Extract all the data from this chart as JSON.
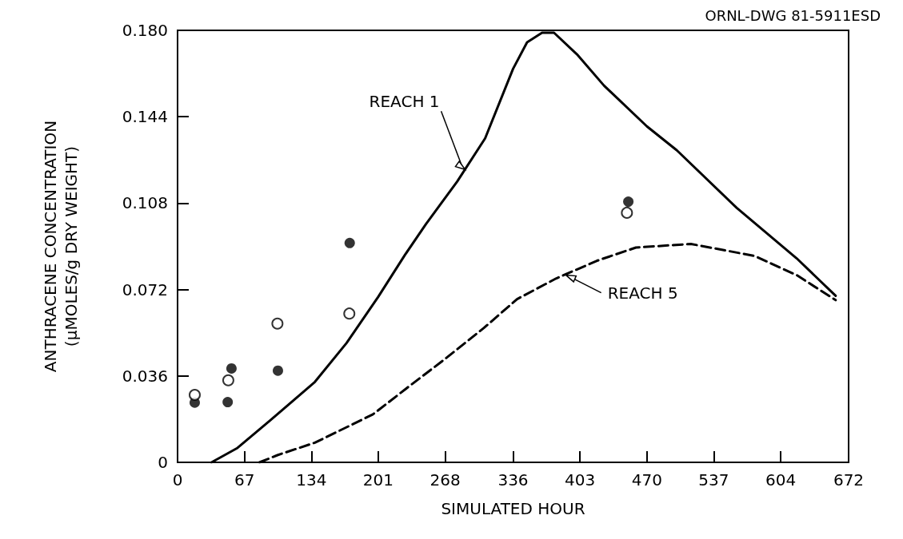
{
  "chart_data": {
    "type": "line",
    "xlabel": "SIMULATED HOUR",
    "ylabel": "ANTHRACENE CONCENTRATION\n(μMOLES/g DRY WEIGHT)",
    "xlim": [
      0,
      672
    ],
    "xticks": [
      0,
      67,
      134,
      201,
      268,
      336,
      403,
      470,
      537,
      604,
      672
    ],
    "ylim": [
      0,
      0.18
    ],
    "yticks": [
      0,
      0.036,
      0.072,
      0.108,
      0.144,
      {
        "value": 0.18,
        "label": "0.180"
      }
    ],
    "grid": false,
    "series": [
      {
        "line_style": "solid",
        "marker": "none",
        "color": "#000000",
        "x": [
          34,
          60,
          92.6,
          137.5,
          169.2,
          201,
          227.5,
          248.6,
          280,
          308,
          336,
          350,
          365,
          377,
          400,
          427,
          470,
          500,
          560,
          620,
          659
        ],
        "values": [
          0,
          0.006,
          0.0174,
          0.0335,
          0.0497,
          0.069,
          0.0863,
          0.0992,
          0.117,
          0.135,
          0.164,
          0.175,
          0.179,
          0.179,
          0.17,
          0.157,
          0.14,
          0.13,
          0.106,
          0.085,
          0.0694
        ]
      },
      {
        "line_style": "dashed",
        "marker": "none",
        "color": "#000000",
        "x": [
          82,
          100,
          137.5,
          195.7,
          236,
          264.5,
          306.8,
          340,
          379,
          420,
          459,
          514,
          578,
          620,
          659
        ],
        "values": [
          0,
          0.003,
          0.0082,
          0.02,
          0.033,
          0.042,
          0.056,
          0.068,
          0.0766,
          0.084,
          0.0895,
          0.091,
          0.086,
          0.078,
          0.0676
        ]
      },
      {
        "type": "scatter",
        "marker": "circle",
        "color": "#000000",
        "x": [
          17.2,
          50.2,
          54,
          100.5,
          172.4,
          451.4
        ],
        "values": [
          0.0249,
          0.0251,
          0.0391,
          0.0382,
          0.0914,
          0.1086
        ]
      },
      {
        "type": "scatter",
        "marker": "circle",
        "color": "#000000",
        "x": [
          17.2,
          50.8,
          100,
          172,
          450
        ],
        "values": [
          0.0281,
          0.0342,
          0.0578,
          0.062,
          0.104
        ]
      }
    ],
    "annotations": [
      {
        "text": "REACH 1",
        "x": 288,
        "y": 0.122
      },
      {
        "text": "REACH 5",
        "x": 389,
        "y": 0.078
      },
      "ORNL-DWG 81-5911ESD"
    ]
  }
}
